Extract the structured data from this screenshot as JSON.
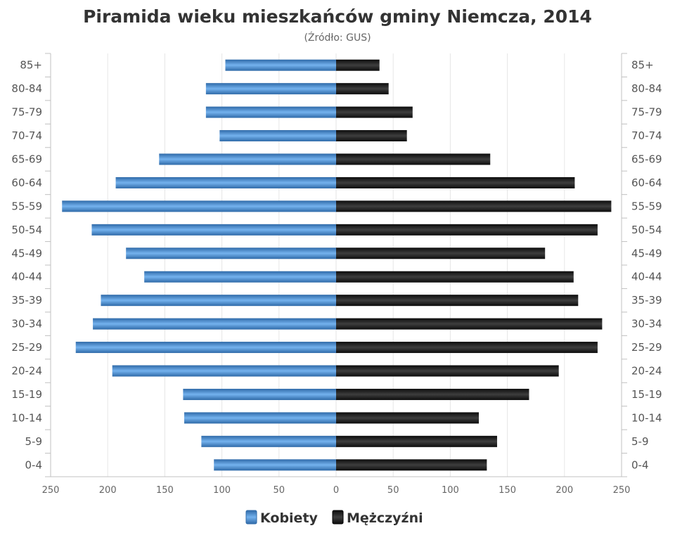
{
  "chart_data": {
    "type": "bar",
    "orientation": "horizontal-mirrored",
    "title": "Piramida wieku mieszkańców gminy Niemcza, 2014",
    "subtitle": "(Źródło: GUS)",
    "categories": [
      "0-4",
      "5-9",
      "10-14",
      "15-19",
      "20-24",
      "25-29",
      "30-34",
      "35-39",
      "40-44",
      "45-49",
      "50-54",
      "55-59",
      "60-64",
      "65-69",
      "70-74",
      "75-79",
      "80-84",
      "85+"
    ],
    "series": [
      {
        "name": "Kobiety",
        "side": "left",
        "color": "#4a8fd4",
        "values": [
          107,
          118,
          133,
          134,
          196,
          228,
          213,
          206,
          168,
          184,
          214,
          240,
          193,
          155,
          102,
          114,
          114,
          97
        ]
      },
      {
        "name": "Mężczyźni",
        "side": "right",
        "color": "#1c1c1c",
        "values": [
          132,
          141,
          125,
          169,
          195,
          229,
          233,
          212,
          208,
          183,
          229,
          241,
          209,
          135,
          62,
          67,
          46,
          38
        ]
      }
    ],
    "xlim": [
      -250,
      250
    ],
    "xticks": [
      "250",
      "200",
      "150",
      "100",
      "50",
      "0",
      "50",
      "100",
      "150",
      "200",
      "250"
    ],
    "grid": true,
    "legend": "bottom-center"
  }
}
